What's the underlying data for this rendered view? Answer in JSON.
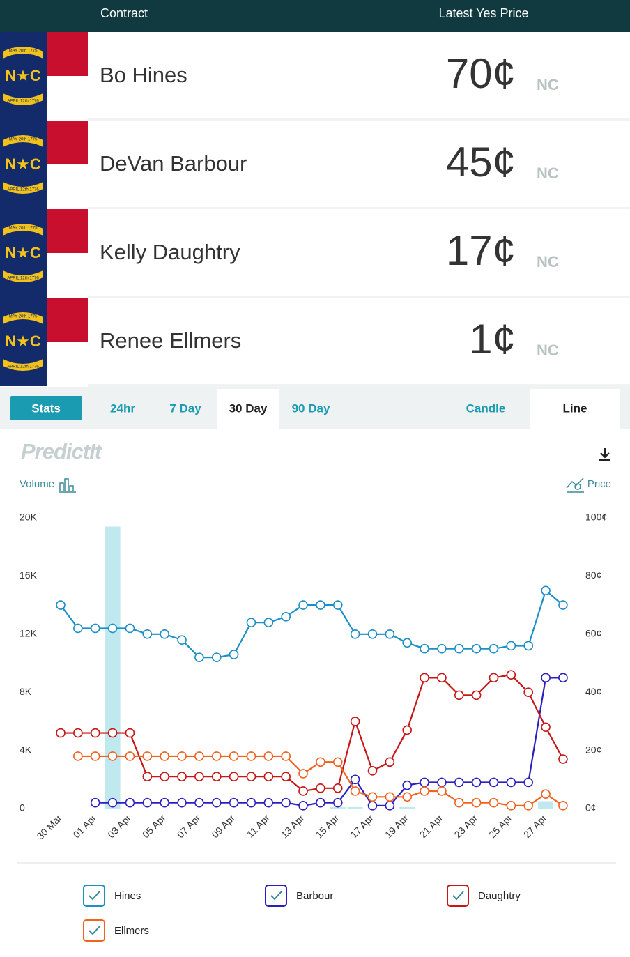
{
  "header": {
    "contract": "Contract",
    "price": "Latest Yes Price"
  },
  "flag": {
    "seal": "N★C",
    "ribbon_top": "MAY 20th 1775",
    "ribbon_bottom": "APRIL 12th 1776"
  },
  "contracts": [
    {
      "name": "Bo Hines",
      "price": "70¢",
      "state": "NC"
    },
    {
      "name": "DeVan Barbour",
      "price": "45¢",
      "state": "NC"
    },
    {
      "name": "Kelly Daughtry",
      "price": "17¢",
      "state": "NC"
    },
    {
      "name": "Renee Ellmers",
      "price": "1¢",
      "state": "NC"
    }
  ],
  "tabs": [
    "Stats",
    "24hr",
    "7 Day",
    "30 Day",
    "90 Day",
    "Candle",
    "Line"
  ],
  "chart_panel": {
    "logo": "PredictIt",
    "volume_label": "Volume",
    "price_label": "Price"
  },
  "chart_data": {
    "type": "line",
    "categories": [
      "30 Mar",
      null,
      "01 Apr",
      null,
      "03 Apr",
      null,
      "05 Apr",
      null,
      "07 Apr",
      null,
      "09 Apr",
      null,
      "11 Apr",
      null,
      "13 Apr",
      null,
      "15 Apr",
      null,
      "17 Apr",
      null,
      "19 Apr",
      null,
      "21 Apr",
      null,
      "23 Apr",
      null,
      "25 Apr",
      null,
      "27 Apr",
      null
    ],
    "ylim": [
      0,
      20000
    ],
    "yticks": [
      0,
      {
        "value": 4000,
        "label": "4K"
      },
      {
        "value": 8000,
        "label": "8K"
      },
      {
        "value": 12000,
        "label": "12K"
      },
      {
        "value": 16000,
        "label": "16K"
      },
      {
        "value": 20000,
        "label": "20K"
      }
    ],
    "y2lim": [
      0,
      100
    ],
    "y2ticks": [
      {
        "value": 0,
        "label": "0¢"
      },
      {
        "value": 20,
        "label": "20¢"
      },
      {
        "value": 40,
        "label": "40¢"
      },
      {
        "value": 60,
        "label": "60¢"
      },
      {
        "value": 80,
        "label": "80¢"
      },
      {
        "value": 100,
        "label": "100¢"
      }
    ],
    "volume": {
      "color": "#bfe8ef",
      "axis": "y",
      "values": [
        0,
        0,
        0,
        19400,
        0,
        0,
        0,
        0,
        0,
        0,
        0,
        0,
        0,
        0,
        0,
        0,
        100,
        100,
        0,
        0,
        100,
        0,
        0,
        0,
        0,
        0,
        0,
        0,
        500,
        0
      ]
    },
    "series": [
      {
        "name": "Hines",
        "color": "#1b8fc6",
        "axis": "y2",
        "values": [
          70,
          62,
          62,
          62,
          62,
          60,
          60,
          58,
          52,
          52,
          53,
          64,
          64,
          66,
          70,
          70,
          70,
          60,
          60,
          60,
          57,
          55,
          55,
          55,
          55,
          55,
          56,
          56,
          75,
          70
        ]
      },
      {
        "name": "Barbour",
        "color": "#2b1fbf",
        "axis": "y2",
        "values": [
          null,
          null,
          2,
          2,
          2,
          2,
          2,
          2,
          2,
          2,
          2,
          2,
          2,
          2,
          1,
          2,
          2,
          10,
          1,
          1,
          8,
          9,
          9,
          9,
          9,
          9,
          9,
          9,
          45,
          45
        ]
      },
      {
        "name": "Daughtry",
        "color": "#c61616",
        "axis": "y2",
        "values": [
          26,
          26,
          26,
          26,
          26,
          11,
          11,
          11,
          11,
          11,
          11,
          11,
          11,
          11,
          6,
          7,
          7,
          30,
          13,
          16,
          27,
          45,
          45,
          39,
          39,
          45,
          46,
          40,
          28,
          17
        ]
      },
      {
        "name": "Ellmers",
        "color": "#f0621f",
        "axis": "y2",
        "values": [
          null,
          18,
          18,
          18,
          18,
          18,
          18,
          18,
          18,
          18,
          18,
          18,
          18,
          18,
          12,
          16,
          16,
          6,
          4,
          4,
          4,
          6,
          6,
          2,
          2,
          2,
          1,
          1,
          5,
          1
        ]
      }
    ]
  }
}
